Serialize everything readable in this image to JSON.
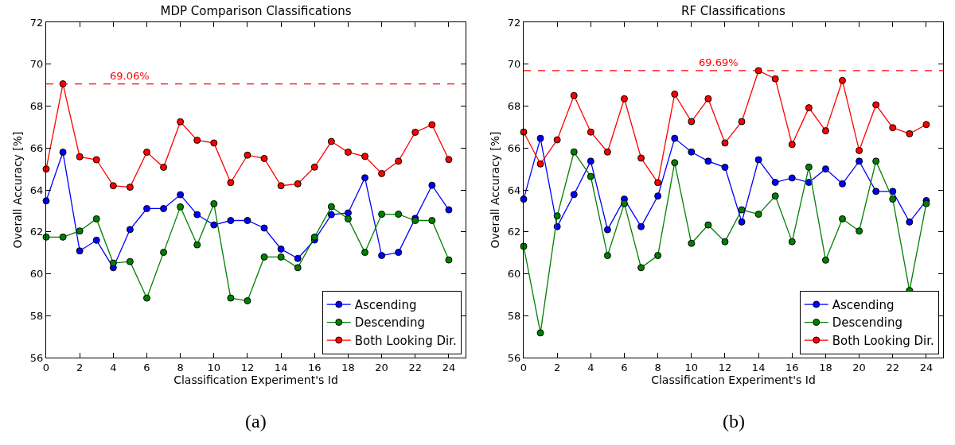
{
  "chart_data": [
    {
      "type": "line",
      "title": "MDP Comparison Classifications",
      "xlabel": "Classification Experiment's Id",
      "ylabel": "Overall Accuracy [%]",
      "x": [
        0,
        1,
        2,
        3,
        4,
        5,
        6,
        7,
        8,
        9,
        10,
        11,
        12,
        13,
        14,
        15,
        16,
        17,
        18,
        19,
        20,
        21,
        22,
        23,
        24
      ],
      "series": [
        {
          "name": "Ascending",
          "color": "#0000ff",
          "values": [
            63.48,
            65.8,
            61.09,
            61.6,
            60.29,
            62.11,
            63.11,
            63.11,
            63.77,
            62.82,
            62.33,
            62.54,
            62.54,
            62.18,
            61.18,
            60.73,
            61.61,
            62.82,
            62.9,
            64.58,
            60.87,
            61.02,
            62.64,
            64.22,
            63.05
          ]
        },
        {
          "name": "Descending",
          "color": "#008000",
          "values": [
            61.75,
            61.75,
            62.04,
            62.62,
            60.51,
            60.58,
            58.84,
            61.02,
            63.19,
            61.38,
            63.34,
            58.84,
            58.71,
            60.8,
            60.8,
            60.29,
            61.75,
            63.2,
            62.62,
            61.02,
            62.84,
            62.84,
            62.54,
            62.54,
            60.66
          ]
        },
        {
          "name": "Both Looking Dir.",
          "color": "#ff0000",
          "values": [
            65.0,
            69.06,
            65.58,
            65.44,
            64.2,
            64.13,
            65.8,
            65.08,
            67.25,
            66.37,
            66.24,
            64.35,
            65.66,
            65.5,
            64.2,
            64.29,
            65.09,
            66.31,
            65.8,
            65.6,
            64.78,
            65.37,
            66.75,
            67.11,
            65.45
          ]
        }
      ],
      "xlim": [
        0,
        25
      ],
      "xticks": [
        0,
        2,
        4,
        6,
        8,
        10,
        12,
        14,
        16,
        18,
        20,
        22,
        24
      ],
      "ylim": [
        56,
        72
      ],
      "yticks": [
        56,
        58,
        60,
        62,
        64,
        66,
        68,
        70,
        72
      ],
      "ref_lines": [
        {
          "axis": "y",
          "value": 69.06,
          "color": "#ff0000",
          "line_style": "dashed"
        }
      ],
      "annotations": [
        {
          "text": "69.06%",
          "x": 5,
          "y": 69.06
        },
        "(a)"
      ],
      "grid": false,
      "legend": "bottom right",
      "marker": "circle",
      "line_style": "solid"
    },
    {
      "type": "line",
      "title": "RF Classifications",
      "xlabel": "Classification Experiment's Id",
      "ylabel": "Overall Accuracy [%]",
      "x": [
        0,
        1,
        2,
        3,
        4,
        5,
        6,
        7,
        8,
        9,
        10,
        11,
        12,
        13,
        14,
        15,
        16,
        17,
        18,
        19,
        20,
        21,
        22,
        23,
        24
      ],
      "series": [
        {
          "name": "Ascending",
          "color": "#0000ff",
          "values": [
            63.56,
            66.46,
            62.25,
            63.78,
            65.37,
            62.1,
            63.56,
            62.25,
            63.71,
            66.46,
            65.81,
            65.37,
            65.08,
            62.47,
            65.44,
            64.36,
            64.57,
            64.36,
            65.0,
            64.29,
            65.37,
            63.93,
            63.93,
            62.47,
            63.49
          ]
        },
        {
          "name": "Descending",
          "color": "#008000",
          "values": [
            61.31,
            57.18,
            62.76,
            65.81,
            64.64,
            60.87,
            63.35,
            60.29,
            60.87,
            65.3,
            61.45,
            62.33,
            61.53,
            63.05,
            62.84,
            63.71,
            61.53,
            65.09,
            60.65,
            62.62,
            62.04,
            65.37,
            63.56,
            59.2,
            63.35
          ]
        },
        {
          "name": "Both Looking Dir.",
          "color": "#ff0000",
          "values": [
            66.76,
            65.24,
            66.39,
            68.5,
            66.76,
            65.81,
            68.35,
            65.52,
            64.35,
            68.57,
            67.26,
            68.35,
            66.24,
            67.26,
            69.69,
            69.3,
            66.17,
            67.92,
            66.82,
            69.22,
            65.88,
            68.06,
            66.97,
            66.68,
            67.12
          ]
        }
      ],
      "xlim": [
        0,
        25
      ],
      "xticks": [
        0,
        2,
        4,
        6,
        8,
        10,
        12,
        14,
        16,
        18,
        20,
        22,
        24
      ],
      "ylim": [
        56,
        72
      ],
      "yticks": [
        56,
        58,
        60,
        62,
        64,
        66,
        68,
        70,
        72
      ],
      "ref_lines": [
        {
          "axis": "y",
          "value": 69.69,
          "color": "#ff0000",
          "line_style": "dashed"
        }
      ],
      "annotations": [
        {
          "text": "69.69%",
          "x": 11.6,
          "y": 69.69
        },
        "(b)"
      ],
      "grid": false,
      "legend": "bottom right",
      "marker": "circle",
      "line_style": "solid"
    }
  ]
}
